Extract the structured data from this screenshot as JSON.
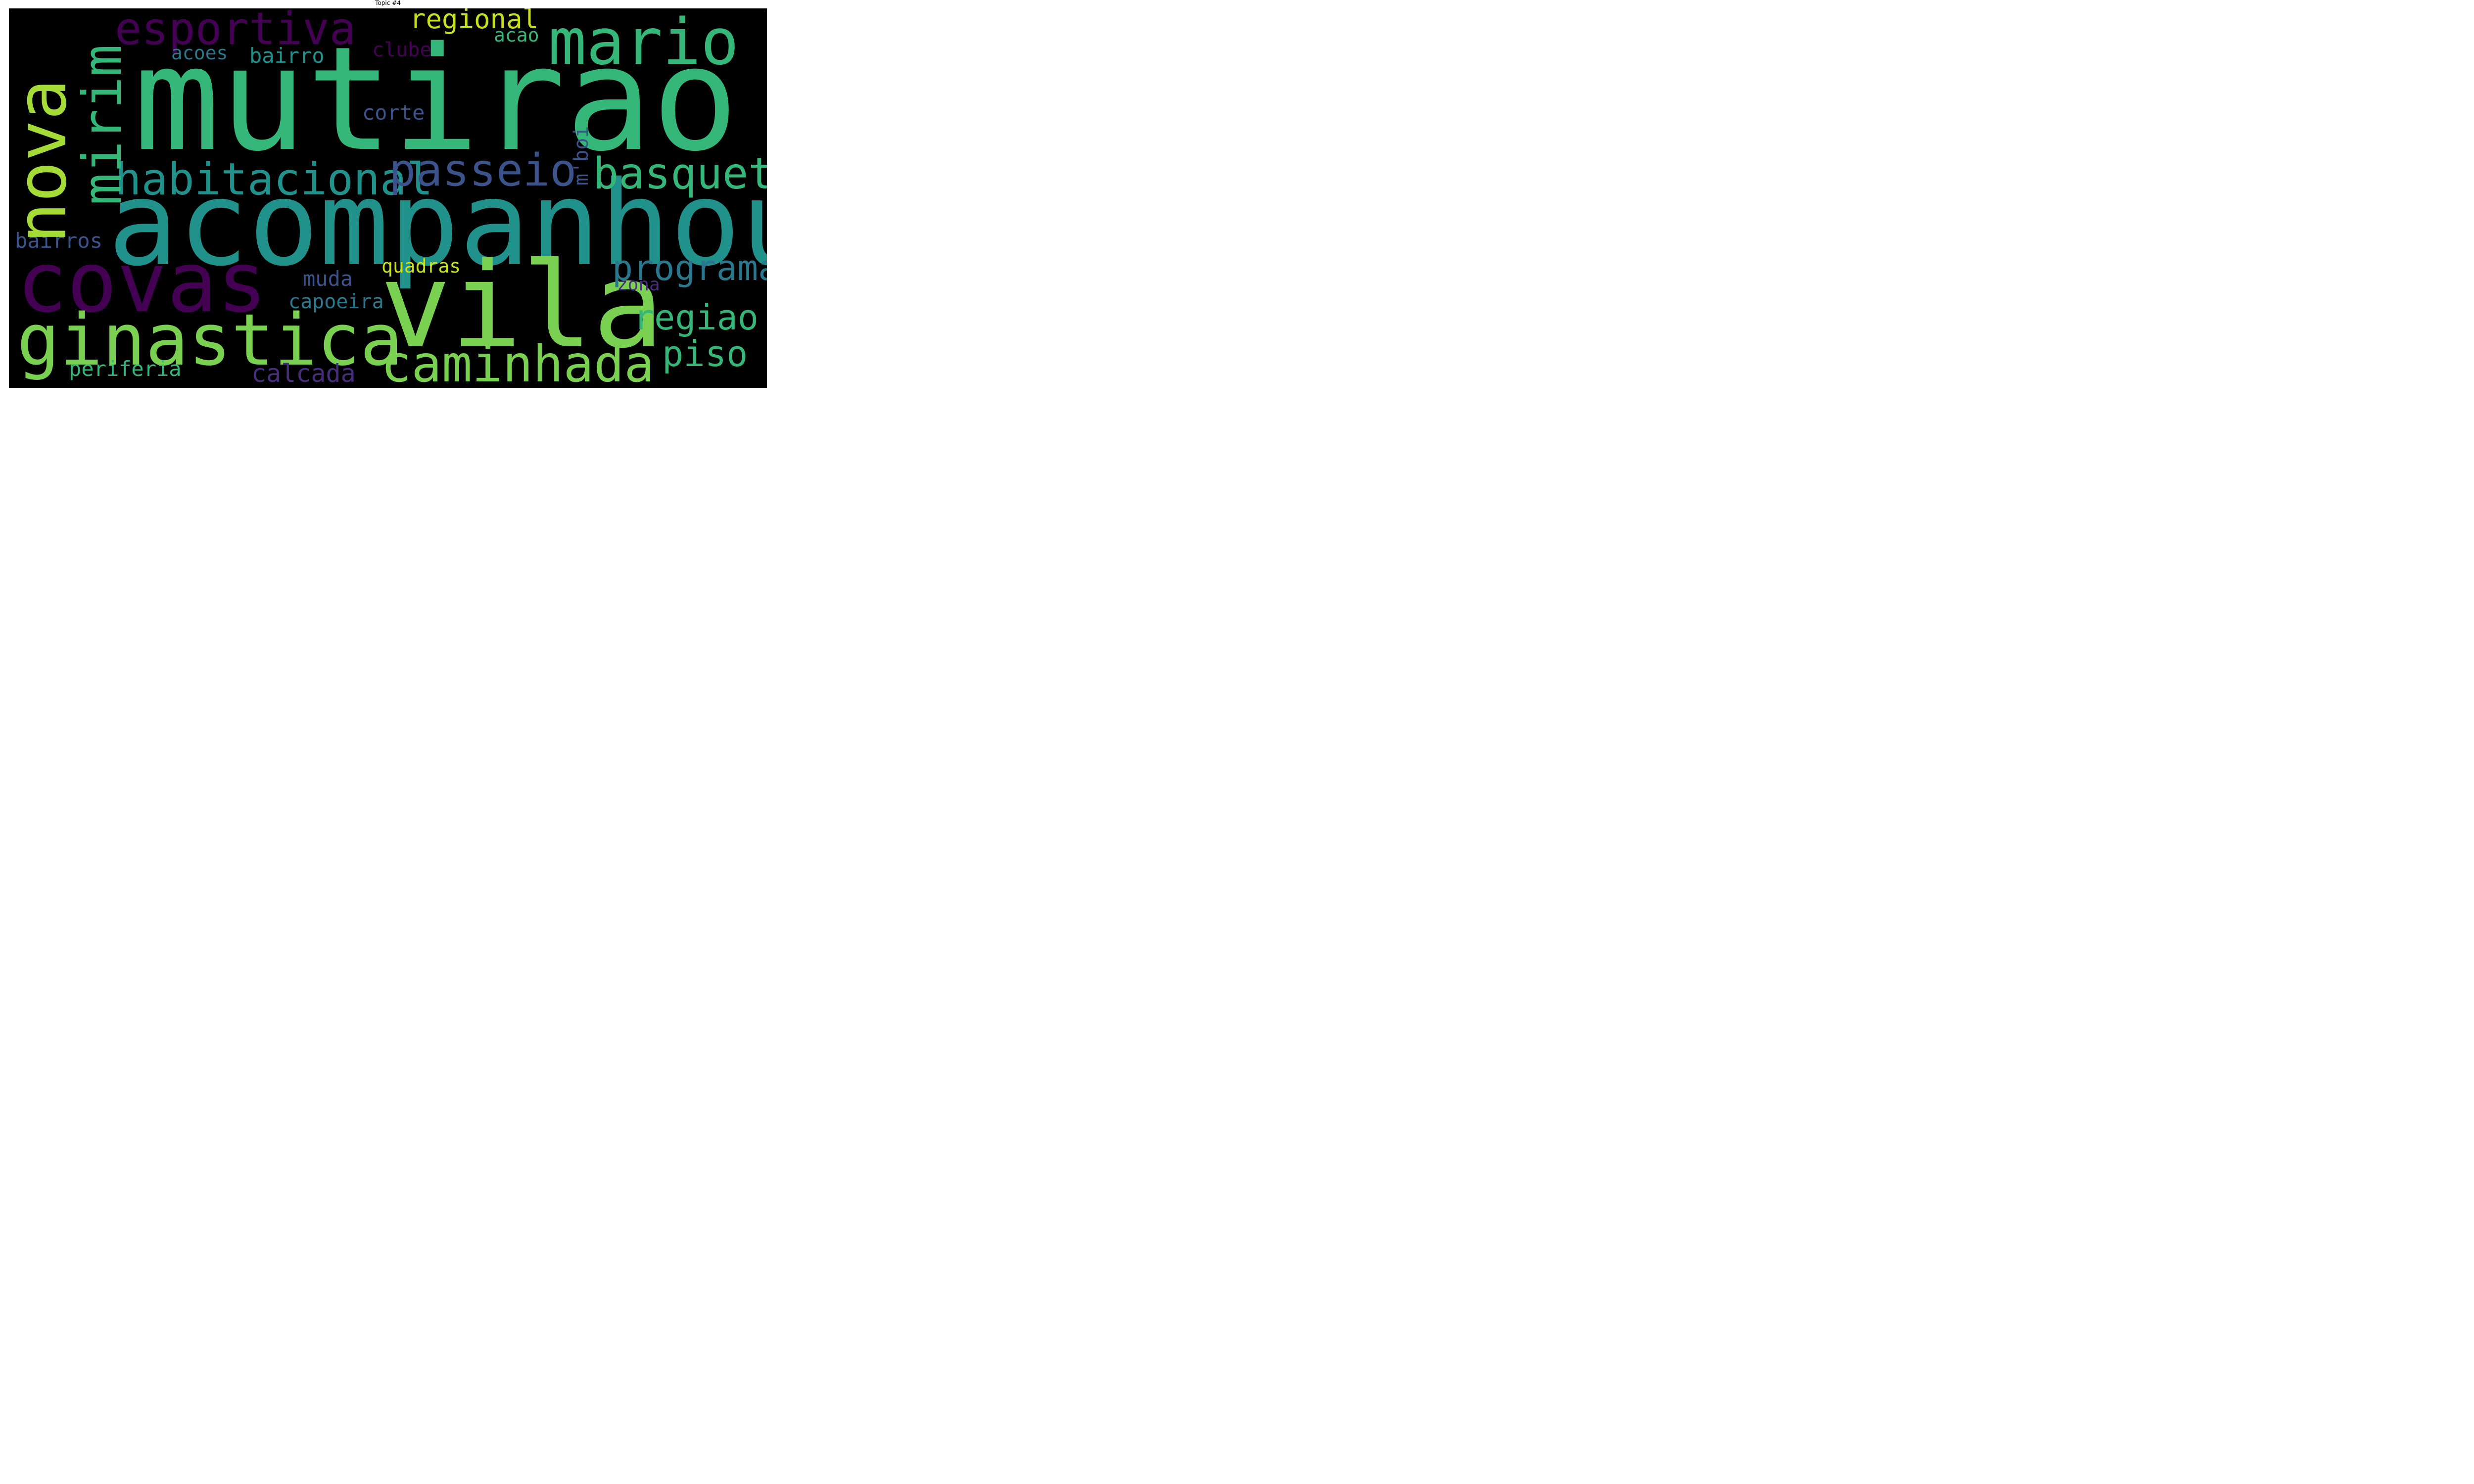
{
  "title": "Topic #4",
  "words": {
    "mutirao": {
      "text": "mutirao",
      "color": "#35b779"
    },
    "acompanhou": {
      "text": "acompanhou",
      "color": "#21918c"
    },
    "vila": {
      "text": "vila",
      "color": "#7ad151"
    },
    "nova": {
      "text": "nova",
      "color": "#a5db36"
    },
    "covas": {
      "text": "covas",
      "color": "#440154"
    },
    "mirim": {
      "text": "mirim",
      "color": "#35b779"
    },
    "mario": {
      "text": "mario",
      "color": "#35b779"
    },
    "esportiva": {
      "text": "esportiva",
      "color": "#440154"
    },
    "ginastica": {
      "text": "ginastica",
      "color": "#7ad151"
    },
    "caminhada": {
      "text": "caminhada",
      "color": "#7ad151"
    },
    "habitacional": {
      "text": "habitacional",
      "color": "#21918c"
    },
    "passeio": {
      "text": "passeio",
      "color": "#3b528b"
    },
    "basquete": {
      "text": "basquete",
      "color": "#35b779"
    },
    "programa": {
      "text": "programa",
      "color": "#2a788e"
    },
    "regiao": {
      "text": "regiao",
      "color": "#35b779"
    },
    "piso": {
      "text": "piso",
      "color": "#35b779"
    },
    "regional": {
      "text": "regional",
      "color": "#c8e020"
    },
    "acao": {
      "text": "acao",
      "color": "#35b779"
    },
    "bairro": {
      "text": "bairro",
      "color": "#21918c"
    },
    "acoes": {
      "text": "acoes",
      "color": "#2a788e"
    },
    "clube": {
      "text": "clube",
      "color": "#440154"
    },
    "corte": {
      "text": "corte",
      "color": "#3b528b"
    },
    "mboi": {
      "text": "m'boi",
      "color": "#3b528b"
    },
    "bairros": {
      "text": "bairros",
      "color": "#3b528b"
    },
    "quadras": {
      "text": "quadras",
      "color": "#c8e020"
    },
    "muda": {
      "text": "muda",
      "color": "#3b528b"
    },
    "zona": {
      "text": "zona",
      "color": "#472d7b"
    },
    "capoeira": {
      "text": "capoeira",
      "color": "#2a788e"
    },
    "periferia": {
      "text": "periferia",
      "color": "#35b779"
    },
    "calcada": {
      "text": "calcada",
      "color": "#472d7b"
    }
  }
}
